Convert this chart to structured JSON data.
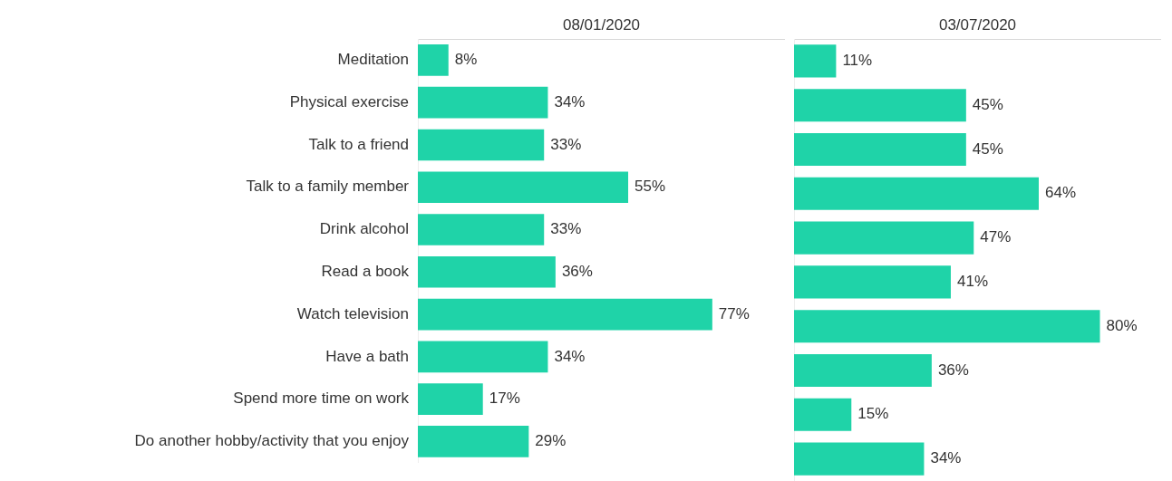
{
  "chart_data": [
    {
      "type": "bar",
      "orientation": "horizontal",
      "title": "08/01/2020",
      "tick_labels": "y",
      "color": "#1fd3a8",
      "categories": [
        "Meditation",
        "Physical exercise",
        "Talk to a friend",
        "Talk to a family member",
        "Drink alcohol",
        "Read a book",
        "Watch television",
        "Have a bath",
        "Spend more time on work",
        "Do another hobby/activity that you enjoy"
      ],
      "values": [
        8,
        34,
        33,
        55,
        33,
        36,
        77,
        34,
        17,
        29
      ],
      "value_labels": [
        "8%",
        "34%",
        "33%",
        "55%",
        "33%",
        "36%",
        "77%",
        "34%",
        "17%",
        "29%"
      ]
    },
    {
      "type": "bar",
      "orientation": "horizontal",
      "title": "03/07/2020",
      "tick_labels": "y",
      "color": "#1fd3a8",
      "categories": [
        null,
        null,
        null,
        null,
        null,
        null,
        null,
        null,
        null,
        null
      ],
      "values": [
        11,
        45,
        45,
        64,
        47,
        41,
        80,
        36,
        15,
        34
      ],
      "value_labels": [
        "11%",
        "45%",
        "45%",
        "64%",
        "47%",
        "41%",
        "80%",
        "36%",
        "15%",
        "34%"
      ]
    }
  ]
}
